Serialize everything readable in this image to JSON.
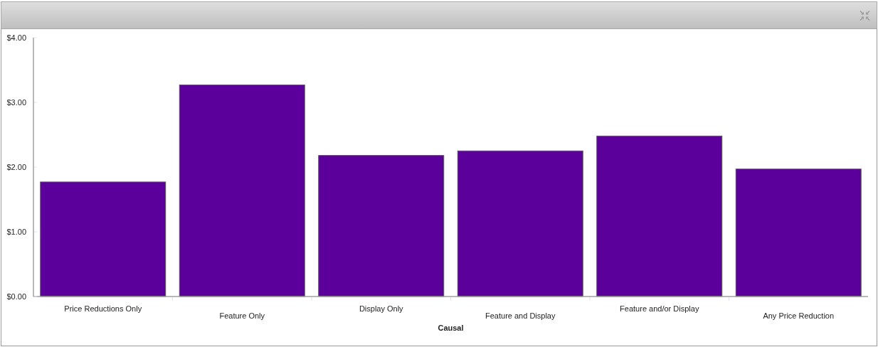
{
  "chart_data": {
    "type": "bar",
    "categories": [
      "Price Reductions Only",
      "Feature Only",
      "Display Only",
      "Feature and Display",
      "Feature and/or Display",
      "Any Price Reduction"
    ],
    "values": [
      1.77,
      3.27,
      2.18,
      2.25,
      2.48,
      1.97
    ],
    "color": "#5b009b",
    "xlabel": "Causal",
    "ylim": [
      0,
      4
    ],
    "yticks": [
      {
        "value": 0,
        "label": "$0.00"
      },
      {
        "value": 1,
        "label": "$1.00"
      },
      {
        "value": 2,
        "label": "$2.00"
      },
      {
        "value": 3,
        "label": "$3.00"
      },
      {
        "value": 4,
        "label": "$4.00"
      }
    ]
  }
}
